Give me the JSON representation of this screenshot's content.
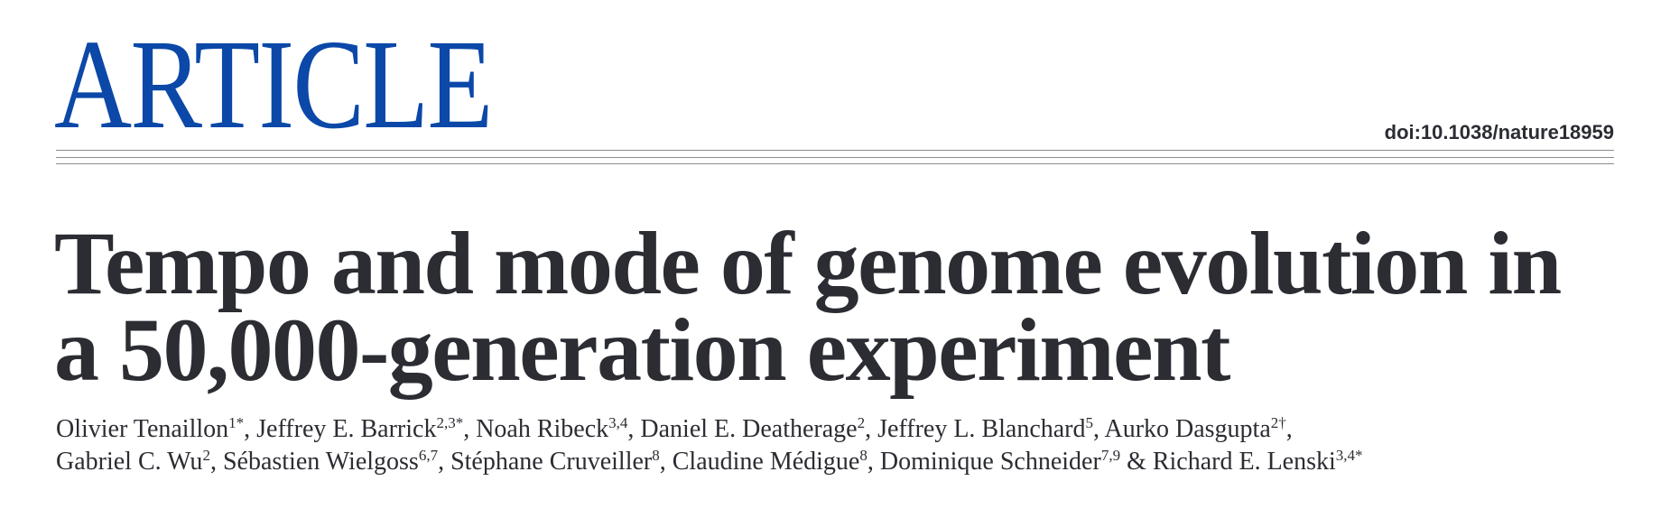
{
  "header": {
    "label": "ARTICLE",
    "doi": "doi:10.1038/nature18959"
  },
  "title": [
    "Tempo and mode of genome evolution in",
    "a 50,000-generation experiment"
  ],
  "authors": [
    [
      {
        "name": "Olivier Tenaillon",
        "sup": "1*",
        "sep": ", "
      },
      {
        "name": "Jeffrey E. Barrick",
        "sup": "2,3*",
        "sep": ", "
      },
      {
        "name": "Noah Ribeck",
        "sup": "3,4",
        "sep": ", "
      },
      {
        "name": "Daniel E. Deatherage",
        "sup": "2",
        "sep": ", "
      },
      {
        "name": "Jeffrey L. Blanchard",
        "sup": "5",
        "sep": ", "
      },
      {
        "name": "Aurko Dasgupta",
        "sup": "2†",
        "sep": ","
      }
    ],
    [
      {
        "name": "Gabriel C. Wu",
        "sup": "2",
        "sep": ", "
      },
      {
        "name": "Sébastien Wielgoss",
        "sup": "6,7",
        "sep": ", "
      },
      {
        "name": "Stéphane Cruveiller",
        "sup": "8",
        "sep": ", "
      },
      {
        "name": "Claudine Médigue",
        "sup": "8",
        "sep": ", "
      },
      {
        "name": "Dominique Schneider",
        "sup": "7,9",
        "sep": " & "
      },
      {
        "name": "Richard E. Lenski",
        "sup": "3,4*"
      }
    ]
  ]
}
